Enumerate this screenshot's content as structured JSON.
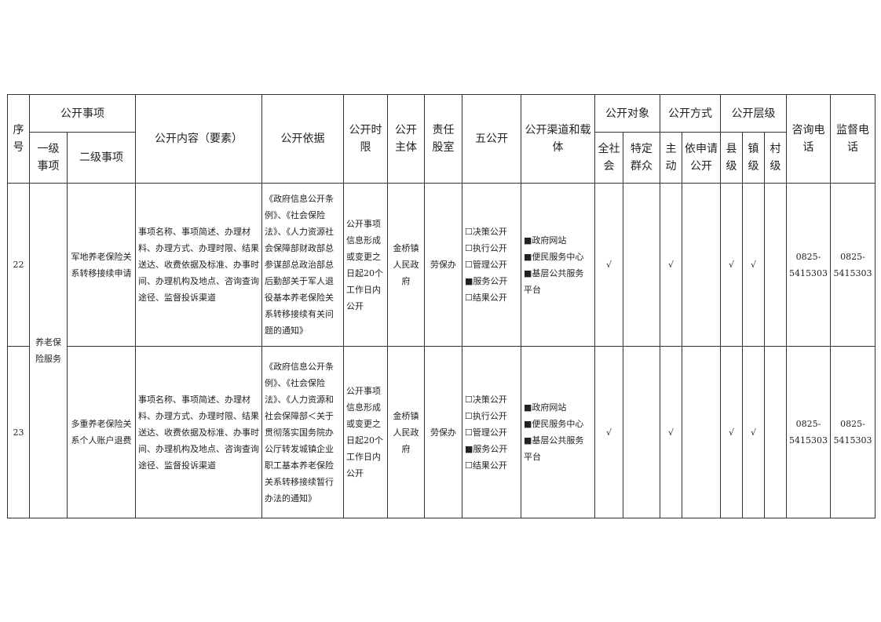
{
  "header": {
    "seq": "序号",
    "item": "公开事项",
    "item_l1": "一级事项",
    "item_l2": "二级事项",
    "content": "公开内容（要素）",
    "basis": "公开依据",
    "limit": "公开时限",
    "subject": "公开主体",
    "dept": "责任股室",
    "five": "五公开",
    "channel": "公开渠道和载体",
    "target": "公开对象",
    "target_all": "全社会",
    "target_group": "特定群众",
    "method": "公开方式",
    "method_active": "主动",
    "method_apply": "依申请公开",
    "level": "公开层级",
    "level_county": "县级",
    "level_town": "镇级",
    "level_village": "村级",
    "consult": "咨询电话",
    "supervise": "监督电话"
  },
  "group_l1": "养老保险服务",
  "rows": [
    {
      "seq": "22",
      "l2": "军地养老保险关系转移接续申请",
      "content": "事项名称、事项简述、办理材料、办理方式、办理时限、结果送达、收费依据及标准、办事时间、办理机构及地点、咨询查询途径、监督投诉渠道",
      "basis": "《政府信息公开条例》、《社会保险法》、《人力资源社会保障部财政部总参谋部总政治部总后勤部关于军人退役基本养老保险关系转移接续有关问题的通知》",
      "limit": "公开事项信息形成或变更之日起20个工作日内公开",
      "subject": "金桥镇人民政府",
      "dept": "劳保办",
      "five": "☐决策公开\n☐执行公开\n☐管理公开\n■服务公开\n☐结果公开",
      "channel": "■政府网站\n■便民服务中心\n■基层公共服务平台",
      "all": "√",
      "group": "",
      "active": "√",
      "apply": "",
      "county": "√",
      "town": "√",
      "village": "",
      "consult": "0825-5415303",
      "supervise": "0825-5415303"
    },
    {
      "seq": "23",
      "l2": "多重养老保险关系个人账户退费",
      "content": "事项名称、事项简述、办理材料、办理方式、办理时限、结果送达、收费依据及标准、办事时间、办理机构及地点、咨询查询途径、监督投诉渠道",
      "basis": "《政府信息公开条例》、《社会保险法》、《人力资源和社会保障部＜关于贯彻落实国务院办公厅转发城镇企业职工基本养老保险关系转移接续暂行办法的通知》",
      "limit": "公开事项信息形成或变更之日起20个工作日内公开",
      "subject": "金桥镇人民政府",
      "dept": "劳保办",
      "five": "☐决策公开\n☐执行公开\n☐管理公开\n■服务公开\n☐结果公开",
      "channel": "■政府网站\n■便民服务中心\n■基层公共服务平台",
      "all": "√",
      "group": "",
      "active": "√",
      "apply": "",
      "county": "√",
      "town": "√",
      "village": "",
      "consult": "0825-5415303",
      "supervise": "0825-5415303"
    }
  ]
}
